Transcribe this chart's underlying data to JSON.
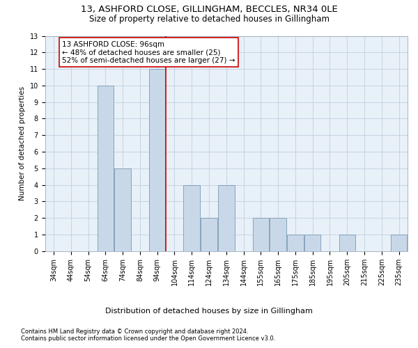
{
  "title1": "13, ASHFORD CLOSE, GILLINGHAM, BECCLES, NR34 0LE",
  "title2": "Size of property relative to detached houses in Gillingham",
  "xlabel": "Distribution of detached houses by size in Gillingham",
  "ylabel": "Number of detached properties",
  "categories": [
    "34sqm",
    "44sqm",
    "54sqm",
    "64sqm",
    "74sqm",
    "84sqm",
    "94sqm",
    "104sqm",
    "114sqm",
    "124sqm",
    "134sqm",
    "144sqm",
    "155sqm",
    "165sqm",
    "175sqm",
    "185sqm",
    "195sqm",
    "205sqm",
    "215sqm",
    "225sqm",
    "235sqm"
  ],
  "values": [
    0,
    0,
    0,
    10,
    5,
    0,
    11,
    0,
    4,
    2,
    4,
    0,
    2,
    2,
    1,
    1,
    0,
    1,
    0,
    0,
    1
  ],
  "bar_color": "#c8d8e8",
  "bar_edgecolor": "#7a9ab5",
  "subject_line_color": "#cc0000",
  "annotation_text": "13 ASHFORD CLOSE: 96sqm\n← 48% of detached houses are smaller (25)\n52% of semi-detached houses are larger (27) →",
  "annotation_box_edgecolor": "#cc0000",
  "ylim": [
    0,
    13
  ],
  "yticks": [
    0,
    1,
    2,
    3,
    4,
    5,
    6,
    7,
    8,
    9,
    10,
    11,
    12,
    13
  ],
  "footer1": "Contains HM Land Registry data © Crown copyright and database right 2024.",
  "footer2": "Contains public sector information licensed under the Open Government Licence v3.0.",
  "background_color": "#ffffff",
  "axes_bg_color": "#e8f0f8",
  "grid_color": "#c0d0e0",
  "title1_fontsize": 9.5,
  "title2_fontsize": 8.5,
  "xlabel_fontsize": 8,
  "ylabel_fontsize": 7.5,
  "tick_fontsize": 7,
  "annotation_fontsize": 7.5,
  "footer_fontsize": 6
}
